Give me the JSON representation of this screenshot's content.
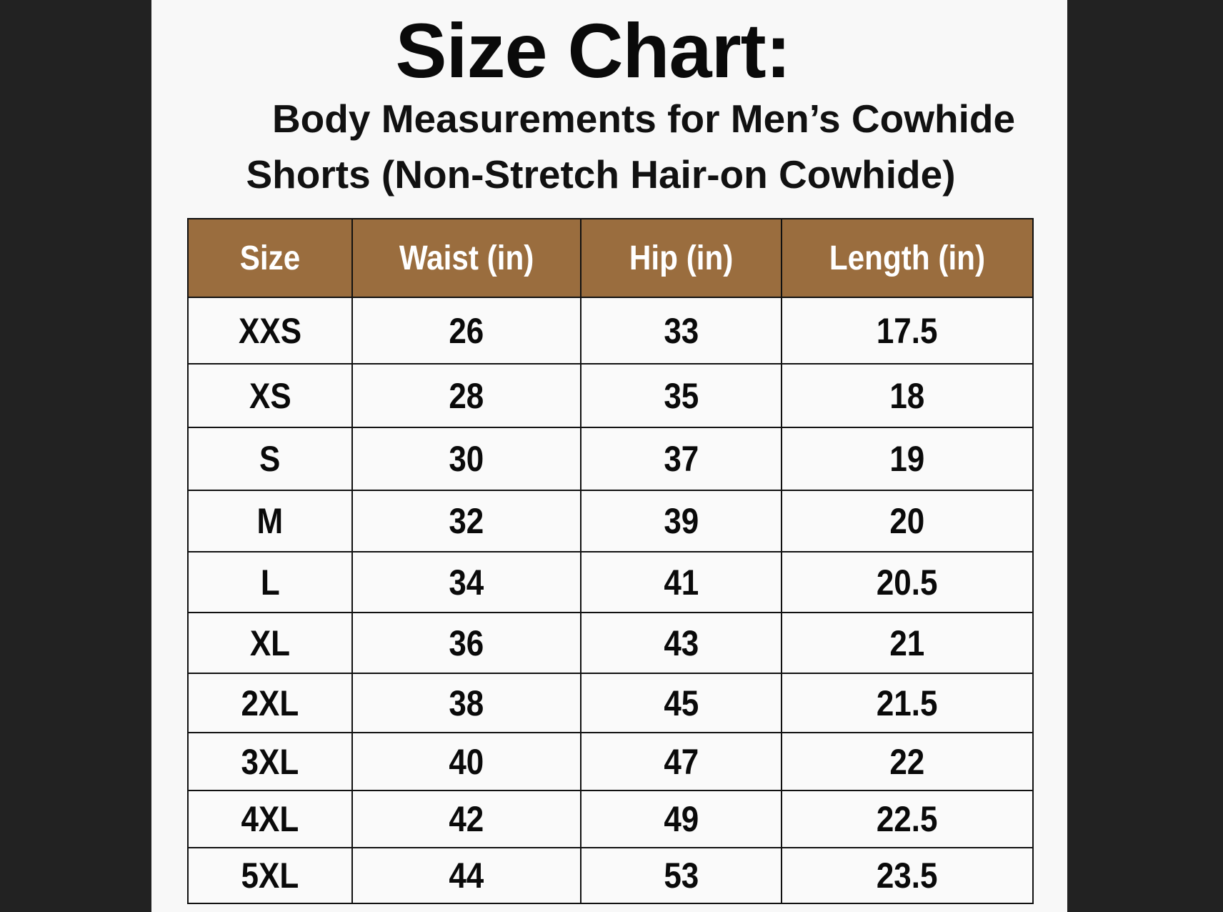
{
  "title": "Size Chart:",
  "subtitle_line1": "Body Measurements for Men’s Cowhide",
  "subtitle_line2": "Shorts (Non-Stretch Hair-on Cowhide)",
  "colors": {
    "header_bg": "#9a6d3e",
    "header_text": "#ffffff",
    "background": "#222222",
    "panel": "#f8f8f8"
  },
  "table": {
    "headers": [
      "Size",
      "Waist (in)",
      "Hip (in)",
      "Length (in)"
    ],
    "rows": [
      [
        "XXS",
        "26",
        "33",
        "17.5"
      ],
      [
        "XS",
        "28",
        "35",
        "18"
      ],
      [
        "S",
        "30",
        "37",
        "19"
      ],
      [
        "M",
        "32",
        "39",
        "20"
      ],
      [
        "L",
        "34",
        "41",
        "20.5"
      ],
      [
        "XL",
        "36",
        "43",
        "21"
      ],
      [
        "2XL",
        "38",
        "45",
        "21.5"
      ],
      [
        "3XL",
        "40",
        "47",
        "22"
      ],
      [
        "4XL",
        "42",
        "49",
        "22.5"
      ],
      [
        "5XL",
        "44",
        "53",
        "23.5"
      ]
    ]
  }
}
